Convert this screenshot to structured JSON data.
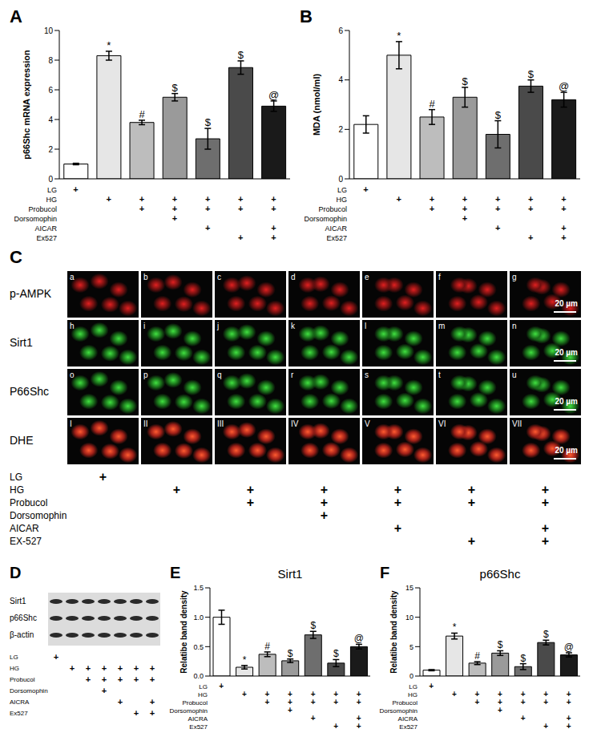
{
  "chart_data": [
    {
      "panel_label": "A",
      "type": "bar",
      "ylabel": "p66Shc mRNA expression",
      "ylim": [
        0,
        10
      ],
      "yticks": [
        0,
        2,
        4,
        6,
        8,
        10
      ],
      "values": [
        1.0,
        8.3,
        3.8,
        5.5,
        2.7,
        7.5,
        4.9
      ],
      "errors": [
        0.05,
        0.3,
        0.15,
        0.25,
        0.7,
        0.45,
        0.35
      ],
      "colors": [
        "#ffffff",
        "#e6e6e6",
        "#bdbdbd",
        "#9a9a9a",
        "#6e6e6e",
        "#4a4a4a",
        "#1a1a1a"
      ],
      "annotations": [
        null,
        "*",
        "#",
        "$",
        "$",
        "$",
        "@"
      ],
      "mark_symbol": "+",
      "conditions": [
        {
          "name": "LG",
          "marks": [
            true,
            false,
            false,
            false,
            false,
            false,
            false
          ]
        },
        {
          "name": "HG",
          "marks": [
            false,
            true,
            true,
            true,
            true,
            true,
            true
          ]
        },
        {
          "name": "Probucol",
          "marks": [
            false,
            false,
            true,
            true,
            true,
            true,
            true
          ]
        },
        {
          "name": "Dorsomophin",
          "marks": [
            false,
            false,
            false,
            true,
            false,
            false,
            false
          ]
        },
        {
          "name": "AICAR",
          "marks": [
            false,
            false,
            false,
            false,
            true,
            false,
            true
          ]
        },
        {
          "name": "Ex527",
          "marks": [
            false,
            false,
            false,
            false,
            false,
            true,
            true
          ]
        }
      ]
    },
    {
      "panel_label": "B",
      "type": "bar",
      "ylabel": "MDA (nmol/ml)",
      "ylim": [
        0,
        6
      ],
      "yticks": [
        0,
        2,
        4,
        6
      ],
      "values": [
        2.2,
        5.0,
        2.5,
        3.3,
        1.8,
        3.75,
        3.2
      ],
      "errors": [
        0.35,
        0.55,
        0.3,
        0.4,
        0.55,
        0.25,
        0.3
      ],
      "colors": [
        "#ffffff",
        "#e6e6e6",
        "#bdbdbd",
        "#9a9a9a",
        "#6e6e6e",
        "#4a4a4a",
        "#1a1a1a"
      ],
      "annotations": [
        null,
        "*",
        "#",
        "$",
        "$",
        "$",
        "@"
      ],
      "mark_symbol": "+",
      "conditions": [
        {
          "name": "LG",
          "marks": [
            true,
            false,
            false,
            false,
            false,
            false,
            false
          ]
        },
        {
          "name": "HG",
          "marks": [
            false,
            true,
            true,
            true,
            true,
            true,
            true
          ]
        },
        {
          "name": "Probucol",
          "marks": [
            false,
            false,
            true,
            true,
            true,
            true,
            true
          ]
        },
        {
          "name": "Dorsomophin",
          "marks": [
            false,
            false,
            false,
            true,
            false,
            false,
            false
          ]
        },
        {
          "name": "AICAR",
          "marks": [
            false,
            false,
            false,
            false,
            true,
            false,
            true
          ]
        },
        {
          "name": "Ex527",
          "marks": [
            false,
            false,
            false,
            false,
            false,
            true,
            true
          ]
        }
      ]
    },
    {
      "panel_label": "E",
      "type": "bar",
      "title": "Sirt1",
      "ylabel": "Relatibe band density",
      "ylim": [
        0,
        1.5
      ],
      "yticks": [
        {
          "value": 0,
          "label": "0.0"
        },
        0.5,
        {
          "value": 1,
          "label": "1.0"
        },
        1.5
      ],
      "values": [
        1.0,
        0.15,
        0.37,
        0.26,
        0.7,
        0.22,
        0.5
      ],
      "errors": [
        0.12,
        0.03,
        0.04,
        0.03,
        0.06,
        0.06,
        0.04
      ],
      "colors": [
        "#ffffff",
        "#e6e6e6",
        "#bdbdbd",
        "#9a9a9a",
        "#6e6e6e",
        "#4a4a4a",
        "#1a1a1a"
      ],
      "annotations": [
        null,
        "*",
        "#",
        "$",
        "$",
        "$",
        "@"
      ],
      "mark_symbol": "+",
      "conditions": [
        {
          "name": "LG",
          "marks": [
            true,
            false,
            false,
            false,
            false,
            false,
            false
          ]
        },
        {
          "name": "HG",
          "marks": [
            false,
            true,
            true,
            true,
            true,
            true,
            true
          ]
        },
        {
          "name": "Probucol",
          "marks": [
            false,
            false,
            true,
            true,
            true,
            true,
            true
          ]
        },
        {
          "name": "Dorsomophin",
          "marks": [
            false,
            false,
            false,
            true,
            false,
            false,
            false
          ]
        },
        {
          "name": "AICRA",
          "marks": [
            false,
            false,
            false,
            false,
            true,
            false,
            true
          ]
        },
        {
          "name": "Ex527",
          "marks": [
            false,
            false,
            false,
            false,
            false,
            true,
            true
          ]
        }
      ]
    },
    {
      "panel_label": "F",
      "type": "bar",
      "title": "p66Shc",
      "ylabel": "Relatibe band density",
      "ylim": [
        0,
        15
      ],
      "yticks": [
        0,
        5,
        10,
        15
      ],
      "values": [
        1.0,
        6.8,
        2.2,
        3.9,
        1.6,
        5.7,
        3.6
      ],
      "errors": [
        0.1,
        0.5,
        0.25,
        0.4,
        0.5,
        0.4,
        0.35
      ],
      "colors": [
        "#ffffff",
        "#e6e6e6",
        "#bdbdbd",
        "#9a9a9a",
        "#6e6e6e",
        "#4a4a4a",
        "#1a1a1a"
      ],
      "annotations": [
        null,
        "*",
        "#",
        "$",
        "$",
        "$",
        "@"
      ],
      "mark_symbol": "+",
      "conditions": [
        {
          "name": "LG",
          "marks": [
            true,
            false,
            false,
            false,
            false,
            false,
            false
          ]
        },
        {
          "name": "HG",
          "marks": [
            false,
            true,
            true,
            true,
            true,
            true,
            true
          ]
        },
        {
          "name": "Probucol",
          "marks": [
            false,
            false,
            true,
            true,
            true,
            true,
            true
          ]
        },
        {
          "name": "Dorsomophin",
          "marks": [
            false,
            false,
            false,
            true,
            false,
            false,
            false
          ]
        },
        {
          "name": "AICRA",
          "marks": [
            false,
            false,
            false,
            false,
            true,
            false,
            true
          ]
        },
        {
          "name": "Ex527",
          "marks": [
            false,
            false,
            false,
            false,
            false,
            true,
            true
          ]
        }
      ]
    }
  ],
  "image_panel": {
    "panel_label": "C",
    "scale_bar": "20 µm",
    "mark_symbol": "+",
    "rows": [
      {
        "name": "p-AMPK",
        "cells": [
          "a",
          "b",
          "c",
          "d",
          "e",
          "f",
          "g"
        ]
      },
      {
        "name": "Sirt1",
        "cells": [
          "h",
          "i",
          "j",
          "k",
          "l",
          "m",
          "n"
        ]
      },
      {
        "name": "P66Shc",
        "cells": [
          "o",
          "p",
          "q",
          "r",
          "s",
          "t",
          "u"
        ]
      },
      {
        "name": "DHE",
        "cells": [
          "I",
          "II",
          "III",
          "IV",
          "V",
          "VI",
          "VII"
        ]
      }
    ],
    "conditions": [
      {
        "name": "LG",
        "marks": [
          true,
          false,
          false,
          false,
          false,
          false,
          false
        ]
      },
      {
        "name": "HG",
        "marks": [
          false,
          true,
          true,
          true,
          true,
          true,
          true
        ]
      },
      {
        "name": "Probucol",
        "marks": [
          false,
          false,
          true,
          true,
          true,
          true,
          true
        ]
      },
      {
        "name": "Dorsomophin",
        "marks": [
          false,
          false,
          false,
          true,
          false,
          false,
          false
        ]
      },
      {
        "name": "AICAR",
        "marks": [
          false,
          false,
          false,
          false,
          true,
          false,
          true
        ]
      },
      {
        "name": "EX-527",
        "marks": [
          false,
          false,
          false,
          false,
          false,
          true,
          true
        ]
      }
    ]
  },
  "blot_panel": {
    "panel_label": "D",
    "bands": [
      "Sirt1",
      "p66Shc",
      "β-actin"
    ],
    "mark_symbol": "+",
    "conditions": [
      {
        "name": "LG",
        "marks": [
          true,
          false,
          false,
          false,
          false,
          false,
          false
        ]
      },
      {
        "name": "HG",
        "marks": [
          false,
          true,
          true,
          true,
          true,
          true,
          true
        ]
      },
      {
        "name": "Probucol",
        "marks": [
          false,
          false,
          true,
          true,
          true,
          true,
          true
        ]
      },
      {
        "name": "Dorsomophin",
        "marks": [
          false,
          false,
          false,
          true,
          false,
          false,
          false
        ]
      },
      {
        "name": "AICRA",
        "marks": [
          false,
          false,
          false,
          false,
          true,
          false,
          true
        ]
      },
      {
        "name": "Ex527",
        "marks": [
          false,
          false,
          false,
          false,
          false,
          true,
          true
        ]
      }
    ]
  }
}
